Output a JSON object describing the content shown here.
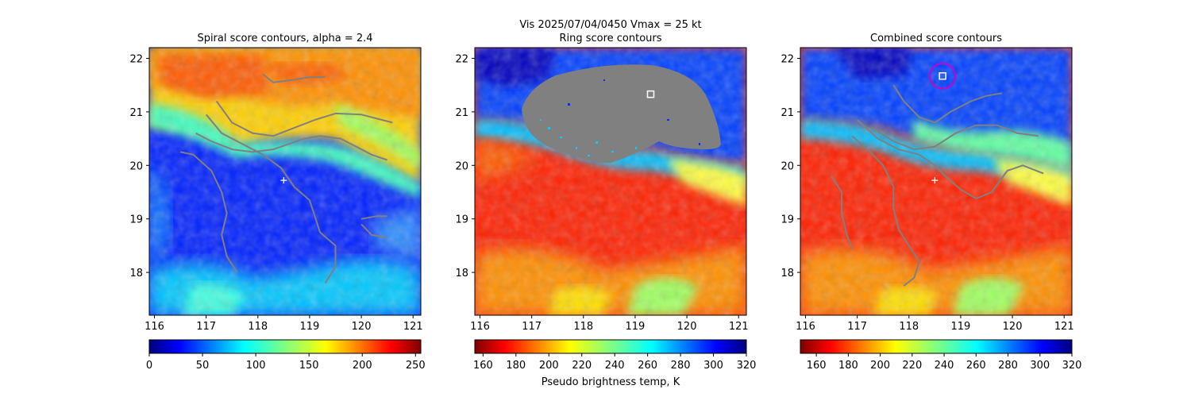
{
  "suptitle": {
    "line1": "Vis  2025/07/04/0450    Vmax = 25 kt"
  },
  "colorbar_label": "Pseudo brightness temp, K",
  "colors": {
    "jet_dark_red": "#800000",
    "red": "#ff0000",
    "orange": "#ff8000",
    "yellow": "#ffff00",
    "cyan": "#00ffff",
    "blue": "#0000ff",
    "dark_blue": "#00007f",
    "contour_gray": "#808080",
    "masked_gray": "#808080",
    "ring_marker": "#cc00cc"
  },
  "chart_data": [
    {
      "type": "heatmap",
      "title": "Spiral score contours, alpha =  2.4",
      "xlim": [
        115.9,
        121.15
      ],
      "ylim": [
        17.2,
        22.2
      ],
      "xticks": [
        "116",
        "117",
        "118",
        "119",
        "120",
        "121"
      ],
      "yticks": [
        "18",
        "19",
        "20",
        "21",
        "22"
      ],
      "colorbar": {
        "min": 0,
        "max": 255,
        "ticks": [
          "0",
          "50",
          "100",
          "150",
          "200",
          "250"
        ],
        "colormap": "jet"
      },
      "center_marker": {
        "symbol": "+",
        "lon": 118.5,
        "lat": 19.72
      },
      "contours": [
        [
          [
            116.5,
            20.25
          ],
          [
            116.75,
            20.2
          ],
          [
            117.1,
            19.9
          ],
          [
            117.3,
            19.5
          ],
          [
            117.4,
            19.1
          ],
          [
            117.3,
            18.7
          ],
          [
            117.4,
            18.3
          ],
          [
            117.6,
            18.0
          ]
        ],
        [
          [
            117.0,
            20.95
          ],
          [
            117.3,
            20.6
          ],
          [
            117.7,
            20.4
          ],
          [
            118.1,
            20.2
          ],
          [
            118.45,
            19.95
          ],
          [
            118.7,
            19.6
          ],
          [
            119.0,
            19.35
          ],
          [
            119.1,
            19.05
          ],
          [
            119.2,
            18.75
          ],
          [
            119.5,
            18.5
          ],
          [
            119.5,
            18.1
          ],
          [
            119.3,
            17.8
          ]
        ],
        [
          [
            116.8,
            20.6
          ],
          [
            117.1,
            20.45
          ],
          [
            117.5,
            20.3
          ],
          [
            117.9,
            20.25
          ],
          [
            118.3,
            20.3
          ],
          [
            118.6,
            20.4
          ],
          [
            118.9,
            20.5
          ],
          [
            119.2,
            20.55
          ],
          [
            119.6,
            20.5
          ],
          [
            119.9,
            20.35
          ],
          [
            120.2,
            20.2
          ],
          [
            120.5,
            20.1
          ]
        ],
        [
          [
            117.2,
            21.2
          ],
          [
            117.5,
            20.8
          ],
          [
            117.9,
            20.6
          ],
          [
            118.3,
            20.55
          ],
          [
            118.7,
            20.7
          ],
          [
            119.1,
            20.85
          ],
          [
            119.5,
            20.97
          ],
          [
            120.0,
            20.95
          ],
          [
            120.4,
            20.85
          ],
          [
            120.6,
            20.8
          ]
        ],
        [
          [
            118.1,
            21.7
          ],
          [
            118.3,
            21.55
          ],
          [
            118.7,
            21.6
          ],
          [
            119.0,
            21.65
          ],
          [
            119.3,
            21.65
          ]
        ],
        [
          [
            120.0,
            19.0
          ],
          [
            120.3,
            19.05
          ],
          [
            120.5,
            19.05
          ]
        ],
        [
          [
            120.0,
            18.9
          ],
          [
            120.2,
            18.7
          ],
          [
            120.5,
            18.65
          ]
        ]
      ]
    },
    {
      "type": "heatmap",
      "title": "Ring score contours",
      "xlim": [
        115.9,
        121.15
      ],
      "ylim": [
        17.2,
        22.2
      ],
      "xticks": [
        "116",
        "117",
        "118",
        "119",
        "120",
        "121"
      ],
      "yticks": [
        "18",
        "19",
        "20",
        "21",
        "22"
      ],
      "colorbar": {
        "min": 155,
        "max": 320,
        "ticks": [
          "160",
          "180",
          "200",
          "220",
          "240",
          "260",
          "280",
          "300",
          "320"
        ],
        "colormap": "jet_r"
      },
      "square_marker": {
        "lon": 119.3,
        "lat": 21.33
      },
      "masked_region": "gray ring-score mask over northern half"
    },
    {
      "type": "heatmap",
      "title": "Combined score contours",
      "xlim": [
        115.9,
        121.15
      ],
      "ylim": [
        17.2,
        22.2
      ],
      "xticks": [
        "116",
        "117",
        "118",
        "119",
        "120",
        "121"
      ],
      "yticks": [
        "18",
        "19",
        "20",
        "21",
        "22"
      ],
      "colorbar": {
        "min": 150,
        "max": 320,
        "ticks": [
          "160",
          "180",
          "200",
          "220",
          "240",
          "260",
          "280",
          "300",
          "320"
        ],
        "colormap": "jet_r"
      },
      "center_marker": {
        "symbol": "+",
        "lon": 118.5,
        "lat": 19.72
      },
      "square_marker": {
        "lon": 118.65,
        "lat": 21.67
      },
      "ring_marker": {
        "lon": 118.65,
        "lat": 21.67
      },
      "contours": [
        [
          [
            116.5,
            19.8
          ],
          [
            116.7,
            19.5
          ],
          [
            116.7,
            19.1
          ],
          [
            116.8,
            18.7
          ],
          [
            116.9,
            18.45
          ]
        ],
        [
          [
            116.9,
            20.55
          ],
          [
            117.2,
            20.3
          ],
          [
            117.5,
            20.0
          ],
          [
            117.7,
            19.6
          ],
          [
            117.7,
            19.2
          ],
          [
            117.8,
            18.8
          ],
          [
            118.0,
            18.5
          ],
          [
            118.2,
            18.2
          ],
          [
            118.1,
            17.9
          ],
          [
            117.9,
            17.75
          ]
        ],
        [
          [
            117.0,
            20.85
          ],
          [
            117.4,
            20.5
          ],
          [
            117.8,
            20.3
          ],
          [
            118.2,
            20.2
          ],
          [
            118.5,
            20.0
          ],
          [
            118.7,
            19.8
          ],
          [
            119.0,
            19.55
          ],
          [
            119.3,
            19.38
          ],
          [
            119.6,
            19.5
          ],
          [
            119.9,
            19.9
          ],
          [
            120.2,
            20.0
          ],
          [
            120.6,
            19.85
          ]
        ],
        [
          [
            117.3,
            20.7
          ],
          [
            117.7,
            20.45
          ],
          [
            118.1,
            20.3
          ],
          [
            118.5,
            20.35
          ],
          [
            118.9,
            20.6
          ],
          [
            119.3,
            20.75
          ],
          [
            119.7,
            20.75
          ],
          [
            120.1,
            20.6
          ],
          [
            120.5,
            20.55
          ]
        ],
        [
          [
            117.7,
            21.5
          ],
          [
            117.9,
            21.2
          ],
          [
            118.2,
            20.9
          ],
          [
            118.5,
            20.8
          ],
          [
            118.8,
            21.0
          ],
          [
            119.2,
            21.2
          ],
          [
            119.5,
            21.3
          ],
          [
            119.8,
            21.35
          ]
        ]
      ]
    }
  ]
}
